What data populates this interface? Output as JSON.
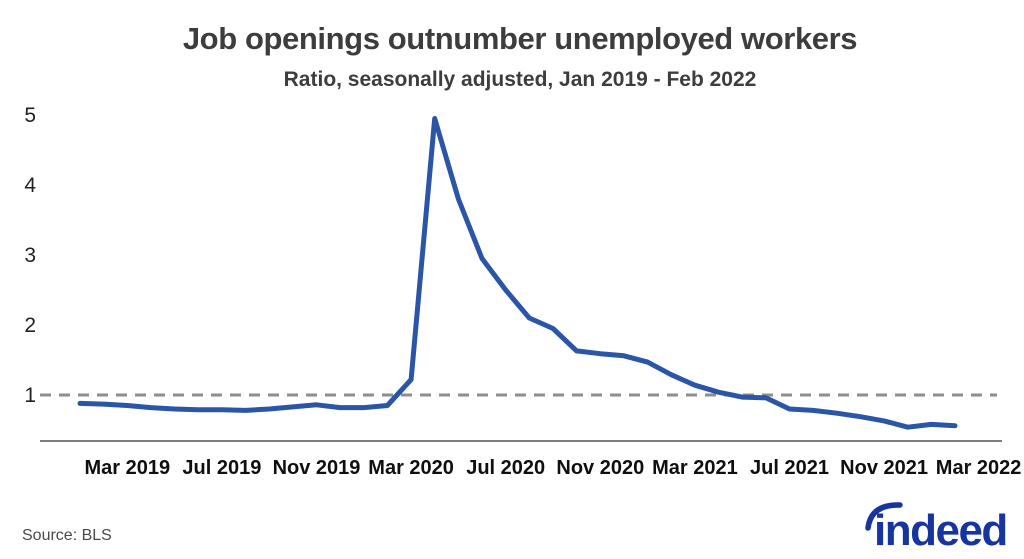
{
  "header": {},
  "chart_data": {
    "type": "line",
    "title": "Job openings outnumber unemployed workers",
    "subtitle": "Ratio, seasonally adjusted, Jan 2019 - Feb 2022",
    "x": [
      "Jan 2019",
      "Feb 2019",
      "Mar 2019",
      "Apr 2019",
      "May 2019",
      "Jun 2019",
      "Jul 2019",
      "Aug 2019",
      "Sep 2019",
      "Oct 2019",
      "Nov 2019",
      "Dec 2019",
      "Jan 2020",
      "Feb 2020",
      "Mar 2020",
      "Apr 2020",
      "May 2020",
      "Jun 2020",
      "Jul 2020",
      "Aug 2020",
      "Sep 2020",
      "Oct 2020",
      "Nov 2020",
      "Dec 2020",
      "Jan 2021",
      "Feb 2021",
      "Mar 2021",
      "Apr 2021",
      "May 2021",
      "Jun 2021",
      "Jul 2021",
      "Aug 2021",
      "Sep 2021",
      "Oct 2021",
      "Nov 2021",
      "Dec 2021",
      "Jan 2022",
      "Feb 2022"
    ],
    "values": [
      0.88,
      0.87,
      0.85,
      0.82,
      0.8,
      0.79,
      0.79,
      0.78,
      0.8,
      0.83,
      0.86,
      0.82,
      0.82,
      0.85,
      1.22,
      4.95,
      3.8,
      2.95,
      2.5,
      2.1,
      1.95,
      1.63,
      1.59,
      1.56,
      1.47,
      1.29,
      1.14,
      1.04,
      0.97,
      0.96,
      0.8,
      0.78,
      0.74,
      0.69,
      0.63,
      0.54,
      0.58,
      0.56
    ],
    "y_ticks": [
      1,
      2,
      3,
      4,
      5
    ],
    "x_tick_labels": [
      "Mar 2019",
      "Jul 2019",
      "Nov 2019",
      "Mar 2020",
      "Jul 2020",
      "Nov 2020",
      "Mar 2021",
      "Jul 2021",
      "Nov 2021",
      "Mar 2022"
    ],
    "x_tick_month_indices": [
      2,
      6,
      10,
      14,
      18,
      22,
      26,
      30,
      34,
      38
    ],
    "reference_line": 1,
    "ylim": [
      0.33,
      5.2
    ],
    "grid": false,
    "legend": "none"
  },
  "footer": {
    "source": "Source: BLS",
    "logo_text": "indeed"
  },
  "colors": {
    "line": "#2b55a7",
    "reference": "#8e8e8e",
    "axis": "#7f7f7f",
    "title_text": "#3d3d3d",
    "tick_text": "#0f0f0f",
    "source_text": "#4a4a4a",
    "logo": "#17359f"
  }
}
